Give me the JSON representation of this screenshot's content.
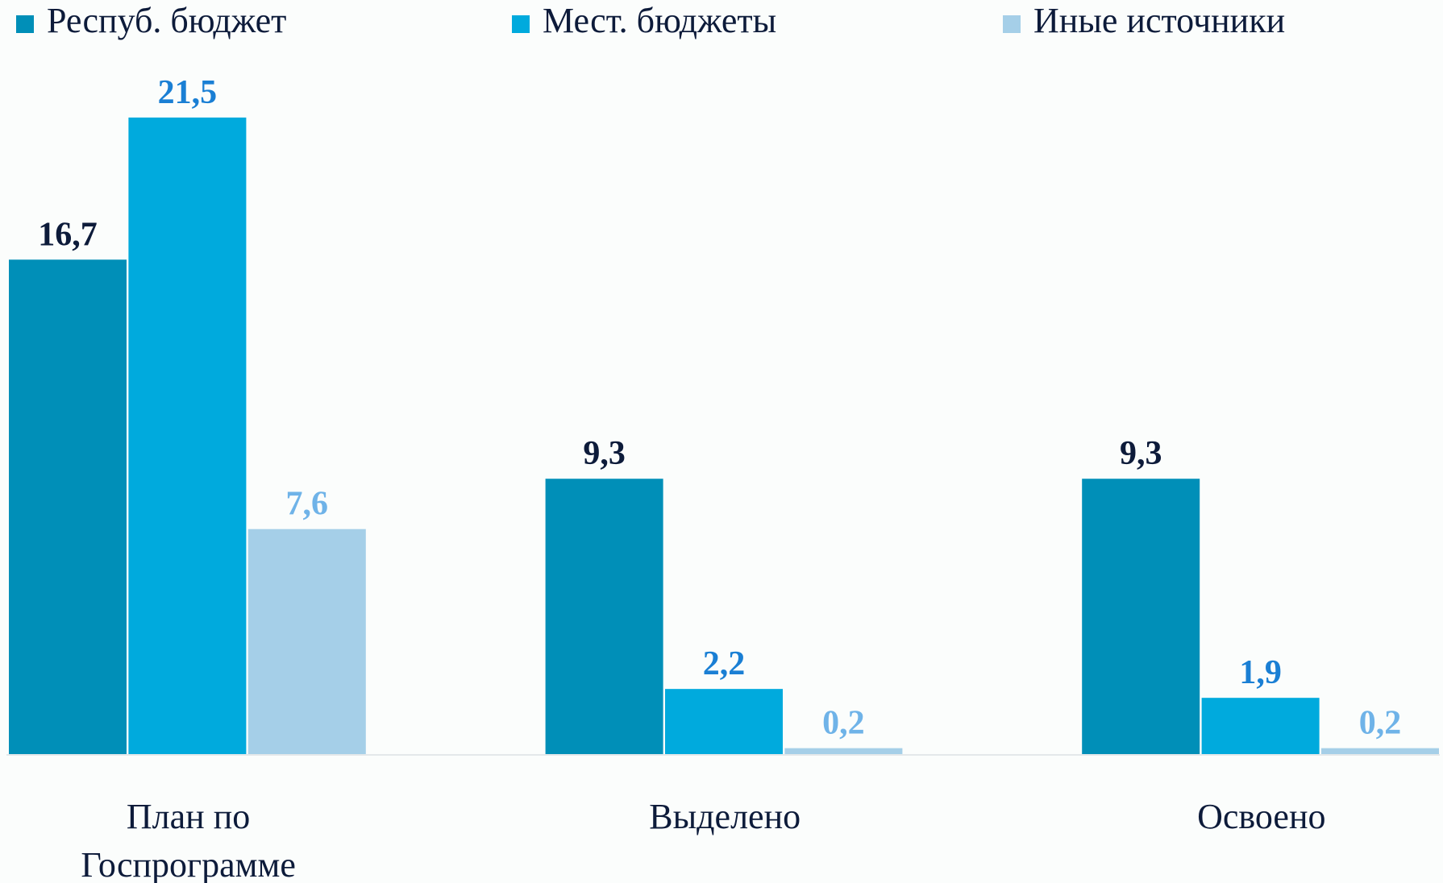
{
  "chart_data": {
    "type": "bar",
    "categories": [
      "План по Госпрограмме",
      "Выделено",
      "Освоено"
    ],
    "series": [
      {
        "name": "Респуб. бюджет",
        "color": "#008fb8",
        "label_color": "#0d1b3a",
        "values": [
          16.7,
          9.3,
          9.3
        ],
        "value_labels": [
          "16,7",
          "9,3",
          "9,3"
        ]
      },
      {
        "name": "Мест. бюджеты",
        "color": "#00aadd",
        "label_color": "#1a7fd4",
        "values": [
          21.5,
          2.2,
          1.9
        ],
        "value_labels": [
          "21,5",
          "2,2",
          "1,9"
        ]
      },
      {
        "name": "Иные источники",
        "color": "#a5cfe8",
        "label_color": "#6fb3e8",
        "values": [
          7.6,
          0.2,
          0.2
        ],
        "value_labels": [
          "7,6",
          "0,2",
          "0,2"
        ]
      }
    ],
    "legend": "top"
  }
}
